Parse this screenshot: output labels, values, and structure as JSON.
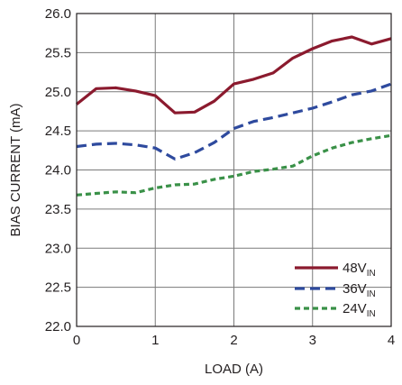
{
  "chart_data": {
    "type": "line",
    "xlabel": "LOAD (A)",
    "ylabel": "BIAS CURRENT (mA)",
    "xlim": [
      0,
      4
    ],
    "ylim": [
      22.0,
      26.0
    ],
    "x_ticks": [
      "0",
      "1",
      "2",
      "3",
      "4"
    ],
    "y_ticks": [
      "22.0",
      "22.5",
      "23.0",
      "23.5",
      "24.0",
      "24.5",
      "25.0",
      "25.5",
      "26.0"
    ],
    "grid": true,
    "legend_position": "bottom-right",
    "series": [
      {
        "name": "48V",
        "name_sub": "IN",
        "color": "#8b1a2e",
        "style": "solid",
        "x": [
          0,
          0.25,
          0.5,
          0.75,
          1.0,
          1.25,
          1.5,
          1.75,
          2.0,
          2.25,
          2.5,
          2.75,
          3.0,
          3.25,
          3.5,
          3.75,
          4.0
        ],
        "y": [
          24.84,
          25.04,
          25.05,
          25.01,
          24.95,
          24.73,
          24.74,
          24.88,
          25.1,
          25.16,
          25.24,
          25.43,
          25.55,
          25.65,
          25.7,
          25.61,
          25.68
        ]
      },
      {
        "name": "36V",
        "name_sub": "IN",
        "color": "#2e4a9e",
        "style": "long-dash",
        "x": [
          0,
          0.25,
          0.5,
          0.75,
          1.0,
          1.25,
          1.5,
          1.75,
          2.0,
          2.25,
          2.5,
          2.75,
          3.0,
          3.25,
          3.5,
          3.75,
          4.0
        ],
        "y": [
          24.3,
          24.33,
          24.34,
          24.32,
          24.28,
          24.14,
          24.22,
          24.35,
          24.53,
          24.62,
          24.67,
          24.73,
          24.79,
          24.87,
          24.96,
          25.01,
          25.1
        ]
      },
      {
        "name": "24V",
        "name_sub": "IN",
        "color": "#3a9148",
        "style": "short-dash",
        "x": [
          0,
          0.25,
          0.5,
          0.75,
          1.0,
          1.25,
          1.5,
          1.75,
          2.0,
          2.25,
          2.5,
          2.75,
          3.0,
          3.25,
          3.5,
          3.75,
          4.0
        ],
        "y": [
          23.68,
          23.7,
          23.72,
          23.71,
          23.77,
          23.81,
          23.82,
          23.88,
          23.92,
          23.98,
          24.01,
          24.05,
          24.18,
          24.28,
          24.35,
          24.4,
          24.44
        ]
      }
    ]
  }
}
